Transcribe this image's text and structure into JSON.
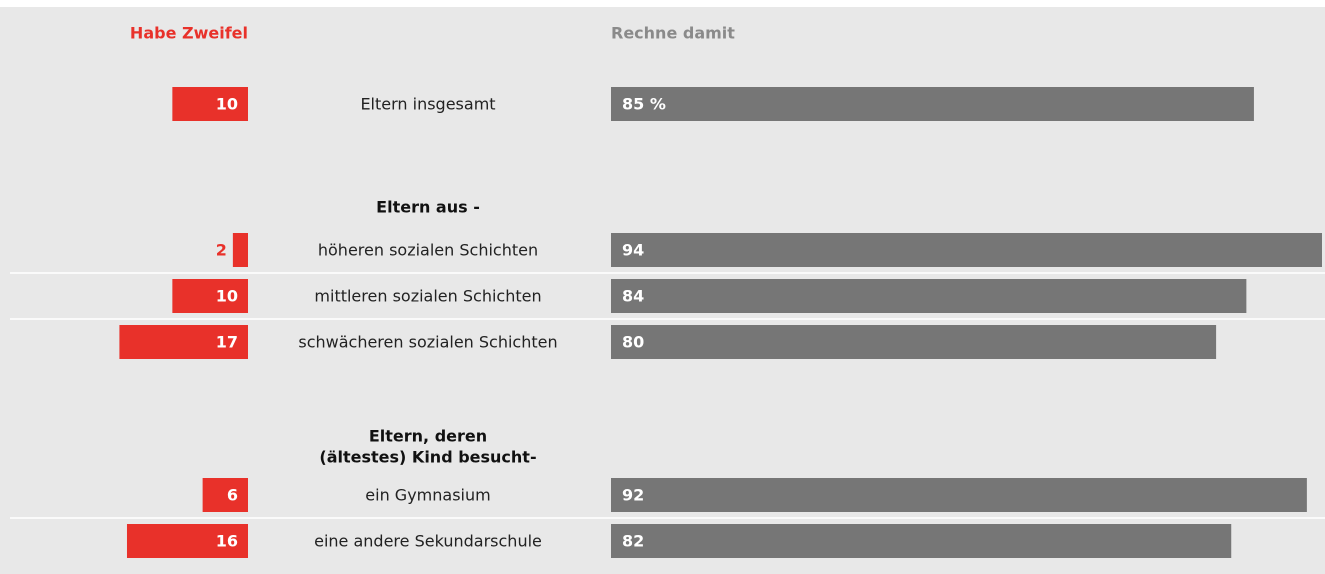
{
  "chart_data": {
    "type": "diverging_bar",
    "left": {
      "name": "Habe Zweifel",
      "color": "#e8312a"
    },
    "right": {
      "name": "Rechne damit",
      "color": "#767676"
    },
    "xlim": [
      0,
      94
    ],
    "groups": [
      {
        "categories": [
          "Eltern insgesamt"
        ],
        "left_values": [
          10
        ],
        "right_values": [
          85
        ],
        "right_value_labels": [
          "85 %"
        ]
      },
      {
        "title": [
          "Eltern aus -"
        ],
        "categories": [
          "höheren sozialen Schichten",
          "mittleren sozialen Schichten",
          "schwächeren sozialen Schichten"
        ],
        "left_values": [
          2,
          10,
          17
        ],
        "right_values": [
          94,
          84,
          80
        ]
      },
      {
        "title": [
          "Eltern, deren",
          "(ältestes) Kind besucht-"
        ],
        "categories": [
          "ein Gymnasium",
          "eine andere Sekundarschule"
        ],
        "left_values": [
          6,
          16
        ],
        "right_values": [
          92,
          82
        ]
      }
    ]
  }
}
